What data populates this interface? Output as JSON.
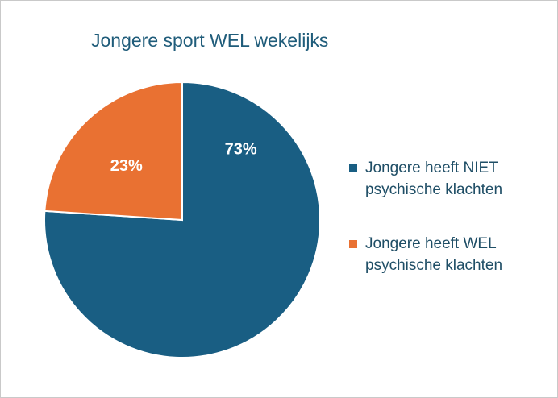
{
  "chart_data": {
    "type": "pie",
    "title": "Jongere sport WEL wekelijks",
    "slices": [
      {
        "label": "Jongere heeft NIET psychische klachten",
        "line1": "Jongere heeft NIET",
        "line2": "psychische klachten",
        "value": 73,
        "display": "73%",
        "color": "#195e83"
      },
      {
        "label": "Jongere heeft WEL psychische klachten",
        "line1": "Jongere heeft WEL",
        "line2": "psychische klachten",
        "value": 23,
        "display": "23%",
        "color": "#e97132"
      }
    ],
    "legend_position": "right"
  }
}
